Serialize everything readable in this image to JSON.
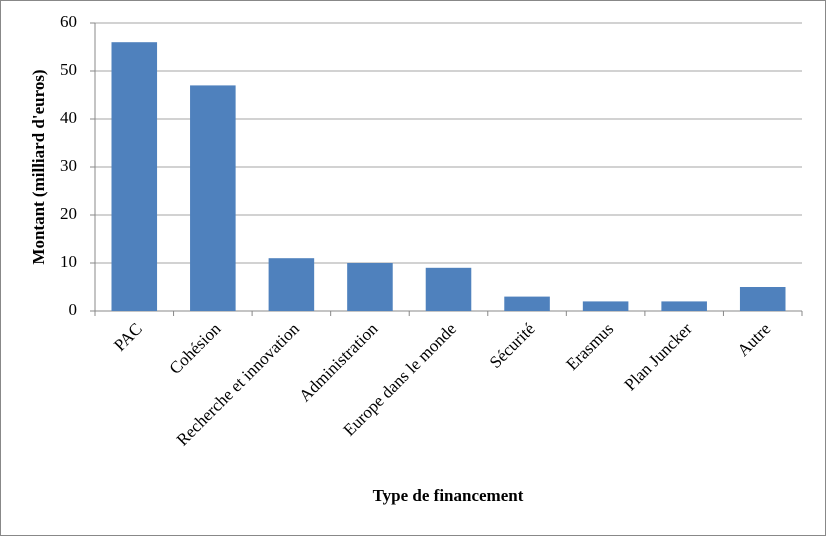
{
  "chart_data": {
    "type": "bar",
    "x_label": "Type de financement",
    "y_label": "Montant (milliard d'euros)",
    "categories": [
      "PAC",
      "Cohésion",
      "Recherche et innovation",
      "Administration",
      "Europe dans le monde",
      "Sécurité",
      "Erasmus",
      "Plan Juncker",
      "Autre"
    ],
    "values": [
      56,
      47,
      11,
      10,
      9,
      3,
      2,
      2,
      5
    ],
    "color": "#4f81bd",
    "ylim": [
      0,
      60
    ],
    "yticks": [
      0,
      10,
      20,
      30,
      40,
      50,
      60
    ],
    "grid": true
  }
}
